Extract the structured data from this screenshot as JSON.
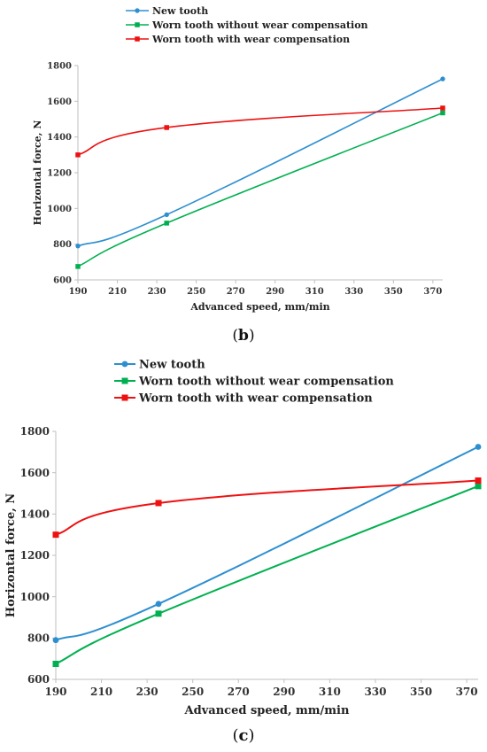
{
  "chart_data": [
    {
      "type": "line",
      "panel_label_before": "",
      "panel_label_letter": "",
      "panel_label_after": "",
      "xlabel": "Advanced speed, mm/min",
      "ylabel": "Horizontal force, N",
      "xlim": [
        190,
        375
      ],
      "ylim": [
        600,
        1800
      ],
      "xticks": [
        190,
        210,
        230,
        250,
        270,
        290,
        310,
        330,
        350,
        370
      ],
      "yticks": [
        600,
        800,
        1000,
        1200,
        1400,
        1600,
        1800
      ],
      "grid": false,
      "legend_position": "top",
      "series": [
        {
          "name": "New tooth",
          "color": "#2e8fd0",
          "marker": "circle",
          "x": [
            190,
            235,
            375
          ],
          "y": [
            790,
            965,
            1725
          ]
        },
        {
          "name": "Worn tooth without wear compensation",
          "color": "#00b050",
          "marker": "square",
          "x": [
            190,
            235,
            375
          ],
          "y": [
            675,
            918,
            1535
          ]
        },
        {
          "name": "Worn tooth with wear compensation",
          "color": "#ee1111",
          "marker": "square",
          "x": [
            190,
            235,
            375
          ],
          "y": [
            1300,
            1453,
            1562
          ]
        }
      ]
    },
    {
      "type": "line",
      "panel_label_before": "(",
      "panel_label_letter": "b",
      "panel_label_after": ")",
      "xlabel": "Advanced speed, mm/min",
      "ylabel": "Horizontal force, N",
      "xlim": [
        190,
        375
      ],
      "ylim": [
        600,
        1800
      ],
      "xticks": [
        190,
        210,
        230,
        250,
        270,
        290,
        310,
        330,
        350,
        370
      ],
      "yticks": [
        600,
        800,
        1000,
        1200,
        1400,
        1600,
        1800
      ],
      "grid": false,
      "legend_position": "top",
      "series": [
        {
          "name": "New tooth",
          "color": "#2e8fd0",
          "marker": "circle",
          "x": [
            190,
            235,
            375
          ],
          "y": [
            790,
            965,
            1725
          ]
        },
        {
          "name": "Worn tooth without wear compensation",
          "color": "#00b050",
          "marker": "square",
          "x": [
            190,
            235,
            375
          ],
          "y": [
            675,
            918,
            1535
          ]
        },
        {
          "name": "Worn tooth with wear compensation",
          "color": "#ee1111",
          "marker": "square",
          "x": [
            190,
            235,
            375
          ],
          "y": [
            1300,
            1453,
            1562
          ]
        }
      ]
    }
  ],
  "figure_caption": {
    "before": "(",
    "letter": "c",
    "after": ")"
  }
}
